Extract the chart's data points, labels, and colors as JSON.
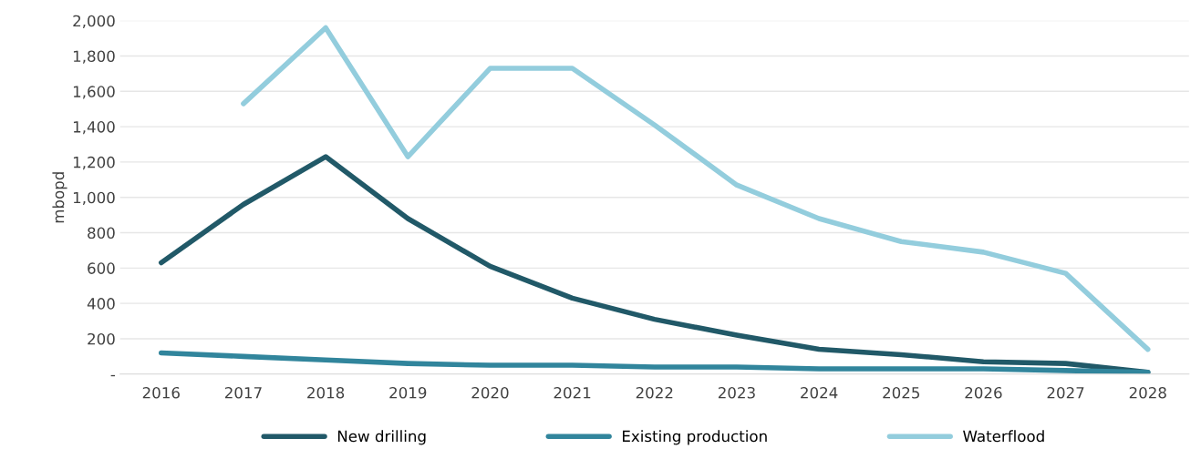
{
  "chart_data": {
    "type": "line",
    "ylabel": "mbopd",
    "categories": [
      "2016",
      "2017",
      "2018",
      "2019",
      "2020",
      "2021",
      "2022",
      "2023",
      "2024",
      "2025",
      "2026",
      "2027",
      "2028"
    ],
    "series": [
      {
        "name": "New drilling",
        "color": "#215968",
        "values": [
          630,
          960,
          1230,
          880,
          610,
          430,
          310,
          220,
          140,
          110,
          70,
          60,
          10
        ]
      },
      {
        "name": "Existing production",
        "color": "#31859c",
        "values": [
          120,
          100,
          80,
          60,
          50,
          50,
          40,
          40,
          30,
          30,
          30,
          20,
          10
        ]
      },
      {
        "name": "Waterflood",
        "color": "#93cddd",
        "values": [
          null,
          1530,
          1960,
          1230,
          1730,
          1730,
          1410,
          1070,
          880,
          750,
          690,
          570,
          140
        ]
      }
    ],
    "ylim": [
      0,
      2000
    ],
    "yticks": [
      {
        "value": 0,
        "label": "-"
      },
      {
        "value": 200,
        "label": "200"
      },
      {
        "value": 400,
        "label": "400"
      },
      {
        "value": 600,
        "label": "600"
      },
      {
        "value": 800,
        "label": "800"
      },
      {
        "value": 1000,
        "label": "1,000"
      },
      {
        "value": 1200,
        "label": "1,200"
      },
      {
        "value": 1400,
        "label": "1,400"
      },
      {
        "value": 1600,
        "label": "1,600"
      },
      {
        "value": 1800,
        "label": "1,800"
      },
      {
        "value": 2000,
        "label": "2,000"
      }
    ],
    "grid": "y",
    "legend": "bottom",
    "line_style": "solid",
    "marker": "none"
  }
}
